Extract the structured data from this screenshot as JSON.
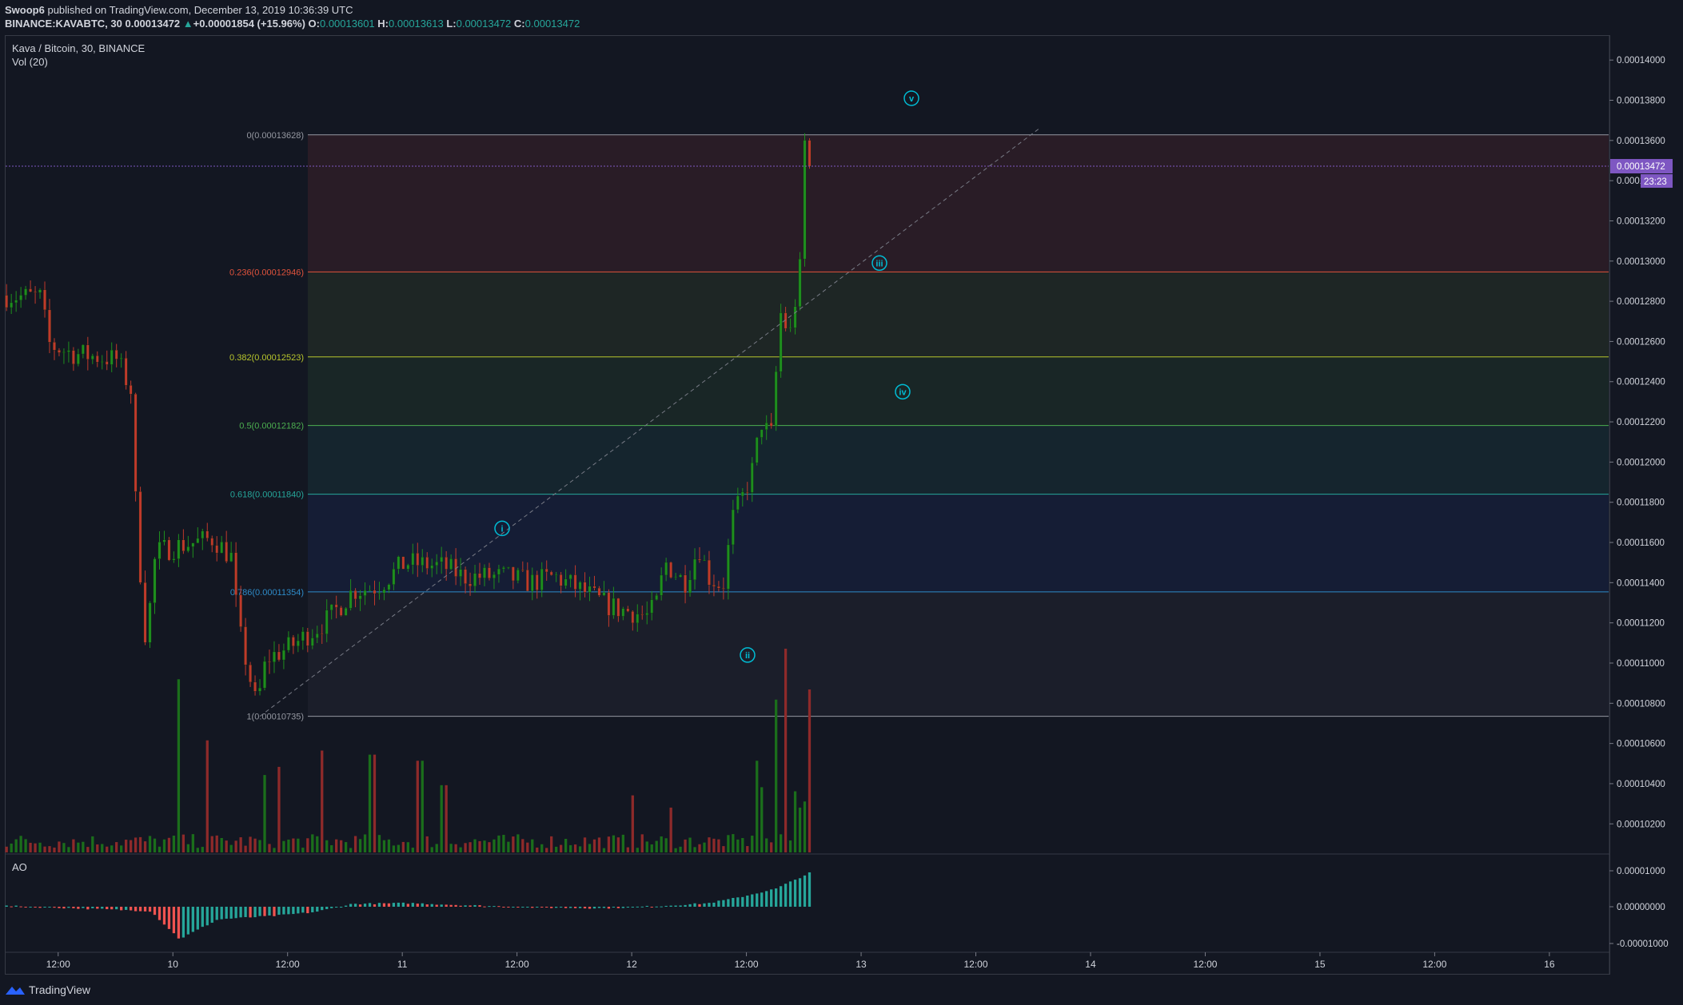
{
  "header": {
    "publisher": "Swoop6",
    "published_text": "published on TradingView.com, December 13, 2019 10:36:39 UTC",
    "symbol": "BINANCE:KAVABTC, 30",
    "last": "0.00013472",
    "change_arrow": "▲",
    "change": "+0.00001854 (+15.96%)",
    "o_label": "O:",
    "o": "0.00013601",
    "h_label": "H:",
    "h": "0.00013613",
    "l_label": "L:",
    "l": "0.00013472",
    "c_label": "C:",
    "c": "0.00013472"
  },
  "legend": {
    "series": "Kava / Bitcoin, 30, BINANCE",
    "volume": "Vol (20)",
    "oscillator": "AO"
  },
  "brand": {
    "name": "TradingView",
    "icon": "tradingview-logo-icon"
  },
  "price_badge": {
    "value": "0.00013472",
    "countdown": "23:23",
    "color": "#7e57c2"
  },
  "colors": {
    "up": "#26a69a",
    "down": "#ef5350",
    "candle_up": "#1e8e1e",
    "candle_down": "#c0392b",
    "background": "#131722"
  },
  "fib_levels": [
    {
      "label": "0(0.00013628)",
      "price": 0.00013628,
      "color": "#9598a1"
    },
    {
      "label": "0.236(0.00012946)",
      "price": 0.00012946,
      "color": "#e0533c"
    },
    {
      "label": "0.382(0.00012523)",
      "price": 0.00012523,
      "color": "#b8c62c"
    },
    {
      "label": "0.5(0.00012182)",
      "price": 0.00012182,
      "color": "#4caf50"
    },
    {
      "label": "0.618(0.00011840)",
      "price": 0.0001184,
      "color": "#26a69a"
    },
    {
      "label": "0.786(0.00011354)",
      "price": 0.00011354,
      "color": "#2e8bc8"
    },
    {
      "label": "1(0.00010735)",
      "price": 0.00010735,
      "color": "#9598a1"
    }
  ],
  "waves": [
    {
      "label": "i",
      "t": 30.65,
      "price": 0.0001167
    },
    {
      "label": "ii",
      "t": 42.55,
      "price": 0.0001104
    },
    {
      "label": "iii",
      "t": 50.5,
      "price": 0.0001299
    },
    {
      "label": "iv",
      "t": 51.7,
      "price": 0.0001235
    },
    {
      "label": "v",
      "t": 52.2,
      "price": 0.0001381
    }
  ],
  "chart_data": {
    "type": "candlestick",
    "x_axis": {
      "unit": "hours since 2019-12-09 00:00 UTC",
      "range": [
        6.5,
        174.2
      ],
      "ticks": [
        {
          "t": 12,
          "label": "12:00"
        },
        {
          "t": 24,
          "label": "10"
        },
        {
          "t": 36,
          "label": "12:00"
        },
        {
          "t": 48,
          "label": "11"
        },
        {
          "t": 60,
          "label": "12:00"
        },
        {
          "t": 72,
          "label": "12"
        },
        {
          "t": 84,
          "label": "12:00"
        },
        {
          "t": 96,
          "label": "13"
        },
        {
          "t": 108,
          "label": "12:00"
        },
        {
          "t": 120,
          "label": "14"
        },
        {
          "t": 132,
          "label": "12:00"
        },
        {
          "t": 144,
          "label": "15"
        },
        {
          "t": 156,
          "label": "12:00"
        },
        {
          "t": 168,
          "label": "16"
        },
        {
          "t": 180,
          "label": "12:00"
        }
      ]
    },
    "y_axis": {
      "range": [
        0.0001005,
        0.0001412
      ],
      "ticks": [
        "0.00014000",
        "0.00013800",
        "0.00013600",
        "0.00013400",
        "0.00013200",
        "0.00013000",
        "0.00012800",
        "0.00012600",
        "0.00012400",
        "0.00012200",
        "0.00012000",
        "0.00011800",
        "0.00011600",
        "0.00011400",
        "0.00011200",
        "0.00011000",
        "0.00010800",
        "0.00010600",
        "0.00010400",
        "0.00010200"
      ]
    },
    "ao_axis": {
      "range": [
        -1.2e-06,
        1.2e-06
      ],
      "ticks": [
        "0.00001000",
        "0.00000000",
        "-0.00001000"
      ]
    },
    "ohlc_keypoints": [
      [
        0,
        0.0001283
      ],
      [
        8,
        0.0001282
      ],
      [
        10,
        0.0001258
      ],
      [
        15,
        0.0001254
      ],
      [
        24,
        0.0001251
      ],
      [
        27,
        0.0001235
      ],
      [
        28,
        0.000117
      ],
      [
        30,
        0.000111
      ],
      [
        32,
        0.0001155
      ],
      [
        36,
        0.0001158
      ],
      [
        44,
        0.0001162
      ],
      [
        48,
        0.0001152
      ],
      [
        49,
        0.000112
      ],
      [
        53,
        0.0001078
      ],
      [
        55,
        0.0001102
      ],
      [
        60,
        0.0001108
      ],
      [
        68,
        0.0001122
      ],
      [
        73,
        0.0001136
      ],
      [
        78,
        0.0001138
      ],
      [
        84,
        0.000115
      ],
      [
        92,
        0.0001148
      ],
      [
        96,
        0.0001143
      ],
      [
        105,
        0.0001143
      ],
      [
        110,
        0.000114
      ],
      [
        115,
        0.0001143
      ],
      [
        120,
        0.0001137
      ],
      [
        125,
        0.000113
      ],
      [
        128,
        0.0001127
      ],
      [
        132,
        0.0001125
      ],
      [
        134,
        0.0001123
      ],
      [
        136,
        0.0001128
      ],
      [
        138,
        0.000115
      ],
      [
        142,
        0.000114
      ],
      [
        145,
        0.0001158
      ],
      [
        147,
        0.0001143
      ],
      [
        150,
        0.0001138
      ],
      [
        152,
        0.0001172
      ],
      [
        154,
        0.0001182
      ],
      [
        156,
        0.0001195
      ],
      [
        158,
        0.000122
      ],
      [
        160,
        0.0001212
      ],
      [
        162,
        0.0001274
      ],
      [
        163,
        0.0001268
      ],
      [
        164,
        0.0001264
      ],
      [
        165,
        0.000128
      ],
      [
        166,
        0.0001295
      ],
      [
        167,
        0.0001363
      ],
      [
        168,
        0.0001347
      ]
    ],
    "volume_spikes": [
      [
        36,
        0.85
      ],
      [
        42,
        0.55
      ],
      [
        54,
        0.38
      ],
      [
        57,
        0.42
      ],
      [
        66,
        0.5
      ],
      [
        76,
        0.48
      ],
      [
        86,
        0.45
      ],
      [
        91,
        0.33
      ],
      [
        130,
        0.28
      ],
      [
        138,
        0.22
      ],
      [
        156,
        0.45
      ],
      [
        157,
        0.32
      ],
      [
        160,
        0.75
      ],
      [
        162,
        1.0
      ],
      [
        164,
        0.3
      ],
      [
        165,
        0.22
      ],
      [
        166,
        0.25
      ],
      [
        167,
        0.8
      ]
    ],
    "candles": 169,
    "candle_interval_hours": 0.5,
    "start_t": 6.6
  }
}
